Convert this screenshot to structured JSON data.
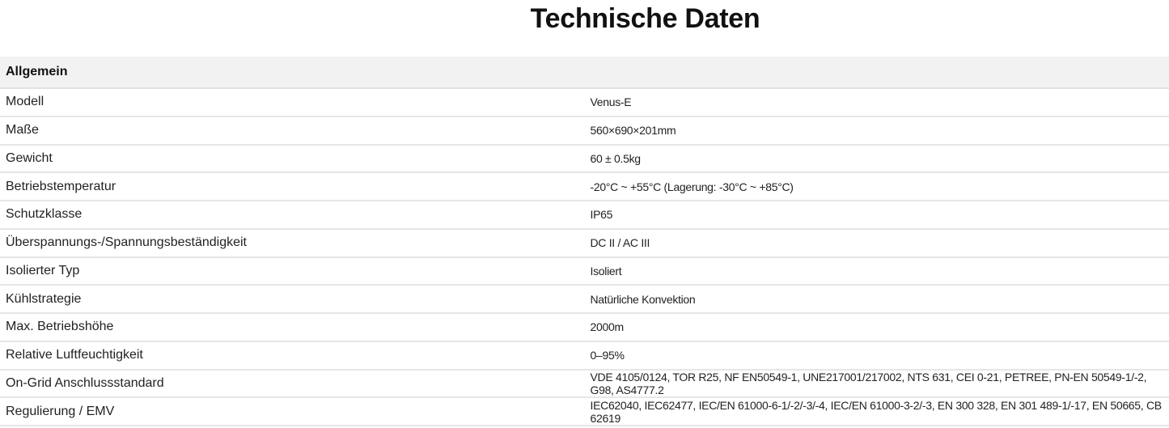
{
  "title": "Technische Daten",
  "section": "Allgemein",
  "rows": [
    {
      "label": "Modell",
      "value": "Venus-E"
    },
    {
      "label": "Maße",
      "value": "560×690×201mm"
    },
    {
      "label": "Gewicht",
      "value": "60 ± 0.5kg"
    },
    {
      "label": "Betriebstemperatur",
      "value": "-20°C ~ +55°C (Lagerung: -30°C ~ +85°C)"
    },
    {
      "label": "Schutzklasse",
      "value": "IP65"
    },
    {
      "label": "Überspannungs-/Spannungsbeständigkeit",
      "value": "DC II / AC III"
    },
    {
      "label": "Isolierter Typ",
      "value": "Isoliert"
    },
    {
      "label": "Kühlstrategie",
      "value": "Natürliche Konvektion"
    },
    {
      "label": "Max. Betriebshöhe",
      "value": "2000m"
    },
    {
      "label": "Relative Luftfeuchtigkeit",
      "value": "0–95%"
    },
    {
      "label": "On-Grid Anschlussstandard",
      "value": "VDE 4105/0124, TOR R25, NF EN50549-1, UNE217001/217002, NTS 631, CEI 0-21, PETREE, PN-EN 50549-1/-2, G98, AS4777.2"
    },
    {
      "label": "Regulierung / EMV",
      "value": "IEC62040, IEC62477, IEC/EN 61000-6-1/-2/-3/-4, IEC/EN 61000-3-2/-3, EN 300 328, EN 301 489-1/-17, EN 50665, CB 62619"
    }
  ]
}
